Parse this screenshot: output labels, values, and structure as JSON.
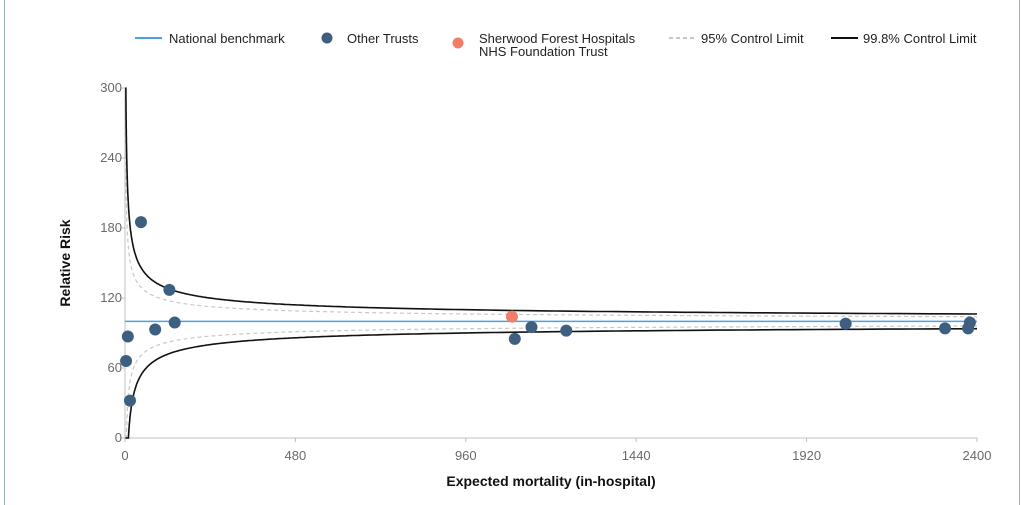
{
  "chart_data": {
    "type": "scatter",
    "title": "",
    "xlabel": "Expected mortality (in-hospital)",
    "ylabel": "Relative Risk",
    "xlim": [
      0,
      2400
    ],
    "ylim": [
      0,
      300
    ],
    "x_ticks": [
      0,
      480,
      960,
      1440,
      1920,
      2400
    ],
    "y_ticks": [
      0,
      60,
      120,
      180,
      240,
      300
    ],
    "grid": false,
    "legend_position": "top",
    "benchmark": 100,
    "legend": [
      {
        "key": "benchmark",
        "label": "National benchmark",
        "symbol": "line",
        "color": "#4aa3e0"
      },
      {
        "key": "other",
        "label": "Other Trusts",
        "symbol": "dot",
        "color": "#3f5f80"
      },
      {
        "key": "highlight",
        "label": "Sherwood Forest Hospitals NHS Foundation Trust",
        "label_lines": [
          "Sherwood Forest Hospitals",
          "NHS Foundation Trust"
        ],
        "symbol": "dot",
        "color": "#f07f6a"
      },
      {
        "key": "limit95",
        "label": "95% Control Limit",
        "symbol": "dashed",
        "color": "#c8c8c8"
      },
      {
        "key": "limit998",
        "label": "99.8% Control Limit",
        "symbol": "line",
        "color": "#111111"
      }
    ],
    "series": [
      {
        "name": "Other Trusts",
        "color": "#3f5f80",
        "points": [
          {
            "x": 8,
            "y": 87
          },
          {
            "x": 3,
            "y": 66
          },
          {
            "x": 14,
            "y": 32
          },
          {
            "x": 45,
            "y": 185
          },
          {
            "x": 85,
            "y": 93
          },
          {
            "x": 125,
            "y": 127
          },
          {
            "x": 140,
            "y": 99
          },
          {
            "x": 1098,
            "y": 85
          },
          {
            "x": 1145,
            "y": 95
          },
          {
            "x": 1243,
            "y": 92
          },
          {
            "x": 2030,
            "y": 98
          },
          {
            "x": 2310,
            "y": 94
          },
          {
            "x": 2375,
            "y": 94
          },
          {
            "x": 2380,
            "y": 99
          }
        ]
      },
      {
        "name": "Sherwood Forest Hospitals NHS Foundation Trust",
        "color": "#f07f6a",
        "points": [
          {
            "x": 1090,
            "y": 104
          }
        ]
      }
    ],
    "control_limits": {
      "limit95_color": "#c8c8c8",
      "limit998_color": "#111111",
      "z95": 1.96,
      "z998": 3.09
    }
  }
}
